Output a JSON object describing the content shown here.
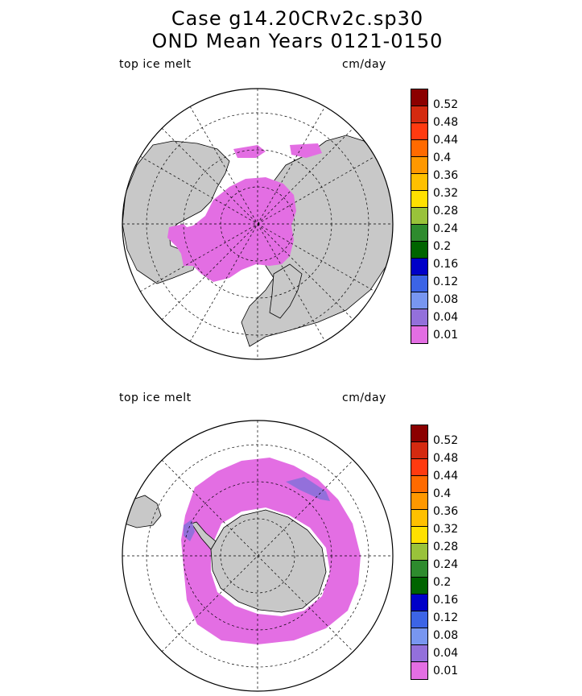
{
  "title": {
    "line1": "Case g14.20CRv2c.sp30",
    "line2": "OND Mean    Years 0121-0150"
  },
  "maps": [
    {
      "id": "north",
      "field_label": "top ice melt",
      "units": "cm/day",
      "hemisphere": "Northern"
    },
    {
      "id": "south",
      "field_label": "top ice melt",
      "units": "cm/day",
      "hemisphere": "Southern"
    }
  ],
  "colorbar": {
    "labels": [
      "0.52",
      "0.48",
      "0.44",
      "0.4",
      "0.36",
      "0.32",
      "0.28",
      "0.24",
      "0.2",
      "0.16",
      "0.12",
      "0.08",
      "0.04",
      "0.01"
    ],
    "colors": [
      "#8b0000",
      "#d42a10",
      "#ff3a10",
      "#ff6a00",
      "#ff9800",
      "#ffc000",
      "#ffe000",
      "#99c23a",
      "#2e8b2e",
      "#006400",
      "#0000c8",
      "#3c64e6",
      "#7896f0",
      "#9370db",
      "#e36ee3"
    ]
  },
  "colors": {
    "land": "#c8c8c8",
    "ice_melt_low": "#e36ee3",
    "ocean": "#ffffff"
  }
}
